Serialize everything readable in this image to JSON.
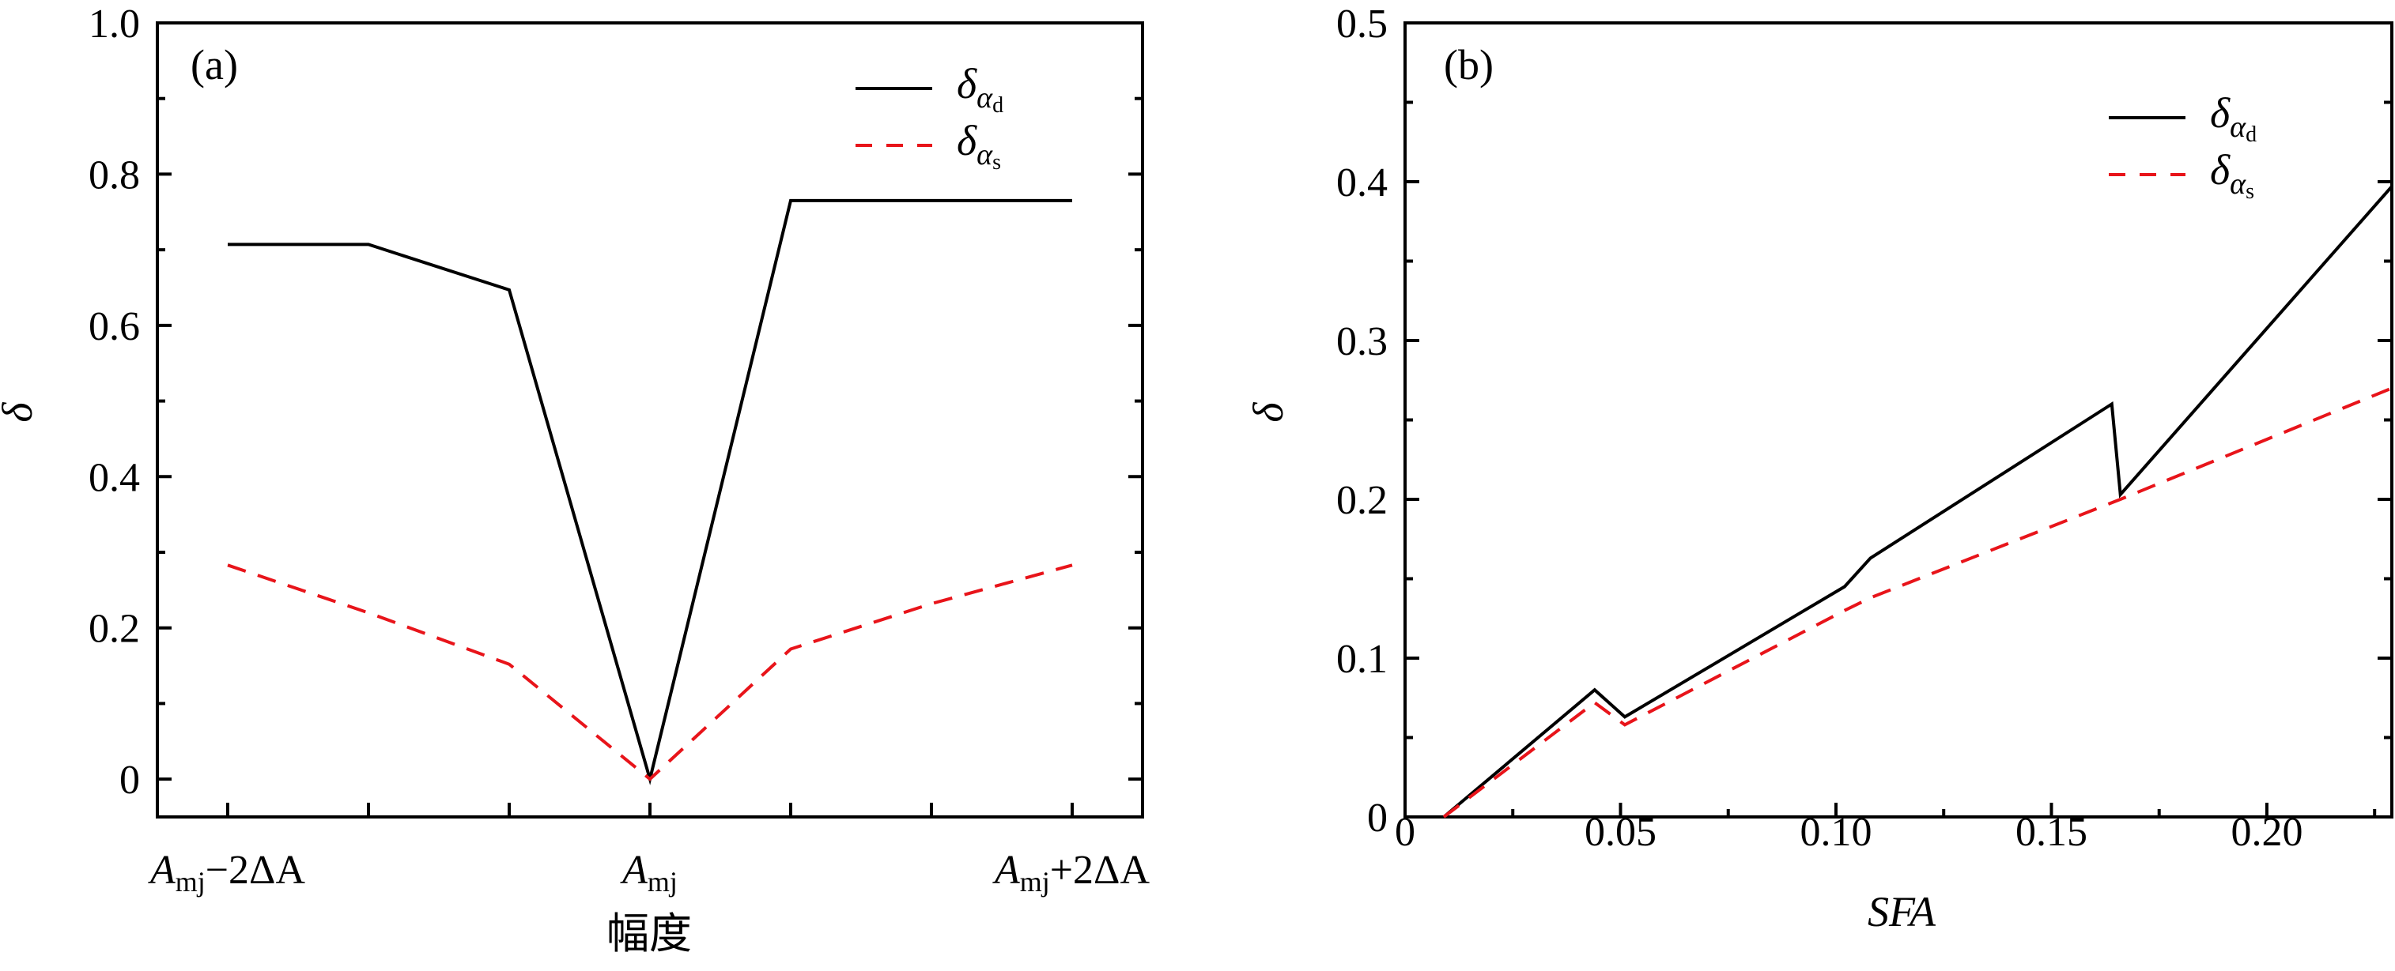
{
  "chart_data": [
    {
      "type": "line",
      "panel_label": "(a)",
      "xlabel": "幅度",
      "ylabel": "δ",
      "xlim": [
        -0.5,
        6.5
      ],
      "ylim": [
        -0.05,
        1.0
      ],
      "x_ticks": [
        0,
        1,
        2,
        3,
        4,
        5,
        6
      ],
      "x_tick_labels": [
        {
          "x": 0,
          "main": "A",
          "sub": "mj",
          "rest": "−2ΔA"
        },
        {
          "x": 3,
          "main": "A",
          "sub": "mj",
          "rest": ""
        },
        {
          "x": 6,
          "main": "A",
          "sub": "mj",
          "rest": "+2ΔA"
        }
      ],
      "y_ticks": [
        0,
        0.2,
        0.4,
        0.6,
        0.8,
        1.0
      ],
      "y_tick_labels": [
        "0",
        "0.2",
        "0.4",
        "0.6",
        "0.8",
        "1.0"
      ],
      "y_minor_ticks": [
        0.1,
        0.3,
        0.5,
        0.7,
        0.9
      ],
      "legend_placement": "top-right",
      "series": [
        {
          "name": "δ",
          "sub": "α",
          "subsub": "d",
          "color": "#000000",
          "style": "solid",
          "x": [
            0,
            1,
            2,
            3,
            4,
            5,
            6
          ],
          "y": [
            0.707,
            0.707,
            0.647,
            0.0,
            0.765,
            0.765,
            0.765
          ]
        },
        {
          "name": "δ",
          "sub": "α",
          "subsub": "s",
          "color": "#e8141a",
          "style": "dashed",
          "x": [
            0,
            1,
            2,
            3,
            4,
            5,
            6
          ],
          "y": [
            0.283,
            0.22,
            0.152,
            0.0,
            0.172,
            0.232,
            0.283
          ]
        }
      ]
    },
    {
      "type": "line",
      "panel_label": "(b)",
      "xlabel": "SFA",
      "ylabel": "δ",
      "xlim": [
        0,
        0.229
      ],
      "ylim": [
        0,
        0.5
      ],
      "x_ticks": [
        0,
        0.05,
        0.1,
        0.15,
        0.2
      ],
      "x_tick_labels_text": [
        "0",
        "0.05",
        "0.10",
        "0.15",
        "0.20"
      ],
      "x_minor_ticks": [
        0.025,
        0.075,
        0.125,
        0.175,
        0.225
      ],
      "y_ticks": [
        0,
        0.1,
        0.2,
        0.3,
        0.4,
        0.5
      ],
      "y_tick_labels": [
        "0",
        "0.1",
        "0.2",
        "0.3",
        "0.4",
        "0.5"
      ],
      "y_minor_ticks": [
        0.05,
        0.15,
        0.25,
        0.35,
        0.45
      ],
      "legend_placement": "top-right",
      "series": [
        {
          "name": "δ",
          "sub": "α",
          "subsub": "d",
          "color": "#000000",
          "style": "solid",
          "x": [
            0.009,
            0.044,
            0.051,
            0.102,
            0.108,
            0.164,
            0.166,
            0.229
          ],
          "y": [
            0.0,
            0.08,
            0.063,
            0.145,
            0.163,
            0.26,
            0.203,
            0.397
          ]
        },
        {
          "name": "δ",
          "sub": "α",
          "subsub": "s",
          "color": "#e8141a",
          "style": "dashed",
          "x": [
            0.009,
            0.044,
            0.051,
            0.102,
            0.108,
            0.166,
            0.229
          ],
          "y": [
            0.0,
            0.072,
            0.058,
            0.13,
            0.138,
            0.2,
            0.27
          ]
        }
      ]
    }
  ]
}
